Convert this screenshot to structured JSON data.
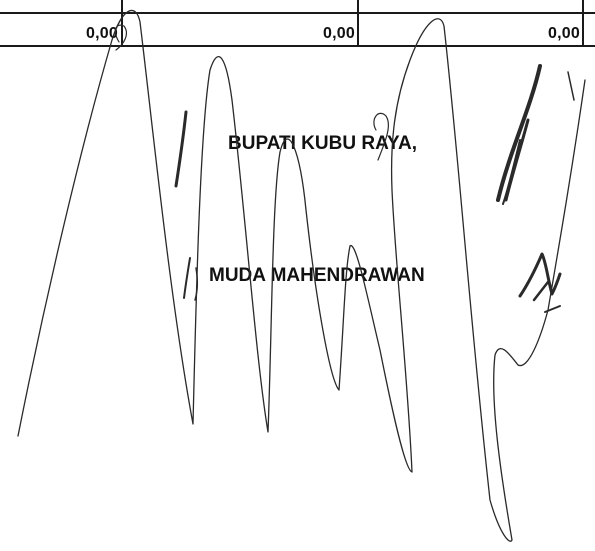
{
  "table_row": {
    "cells": [
      "0,00",
      "0,00",
      "0,00"
    ]
  },
  "signature_block": {
    "title": "BUPATI KUBU RAYA,",
    "name": "MUDA MAHENDRAWAN"
  },
  "colors": {
    "ink": "#111111",
    "signature_ink": "#2a2a2a"
  },
  "icons": {
    "signature": "handwritten-signature"
  }
}
